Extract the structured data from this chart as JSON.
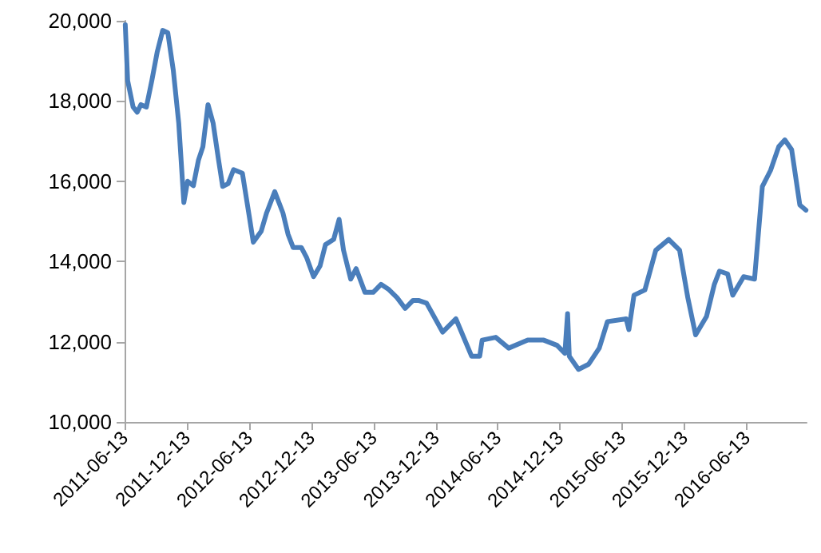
{
  "chart_data": {
    "type": "line",
    "x": [
      "2011-06-15",
      "2011-06-22",
      "2011-07-08",
      "2011-07-20",
      "2011-07-31",
      "2011-08-16",
      "2011-09-01",
      "2011-09-17",
      "2011-10-03",
      "2011-10-18",
      "2011-11-03",
      "2011-11-19",
      "2011-12-04",
      "2011-12-15",
      "2012-01-01",
      "2012-01-16",
      "2012-01-29",
      "2012-02-13",
      "2012-02-28",
      "2012-03-15",
      "2012-03-27",
      "2012-04-12",
      "2012-04-28",
      "2012-05-24",
      "2012-06-14",
      "2012-06-25",
      "2012-07-18",
      "2012-08-03",
      "2012-08-27",
      "2012-09-20",
      "2012-10-05",
      "2012-10-20",
      "2012-11-13",
      "2012-11-29",
      "2012-12-19",
      "2013-01-07",
      "2013-01-23",
      "2013-02-16",
      "2013-03-04",
      "2013-03-17",
      "2013-04-07",
      "2013-04-23",
      "2013-05-19",
      "2013-06-12",
      "2013-07-05",
      "2013-07-28",
      "2013-08-21",
      "2013-09-14",
      "2013-10-07",
      "2013-10-23",
      "2013-11-16",
      "2014-01-02",
      "2014-02-10",
      "2014-03-28",
      "2014-04-21",
      "2014-04-28",
      "2014-06-07",
      "2014-07-15",
      "2014-09-09",
      "2014-10-26",
      "2014-12-04",
      "2014-12-27",
      "2015-01-04",
      "2015-01-09",
      "2015-02-05",
      "2015-03-07",
      "2015-04-07",
      "2015-05-01",
      "2015-06-25",
      "2015-07-03",
      "2015-07-18",
      "2015-08-19",
      "2015-09-20",
      "2015-10-28",
      "2015-11-29",
      "2015-12-23",
      "2016-01-15",
      "2016-02-16",
      "2016-03-10",
      "2016-03-25",
      "2016-04-18",
      "2016-05-03",
      "2016-06-04",
      "2016-07-06",
      "2016-07-29",
      "2016-08-22",
      "2016-09-15",
      "2016-10-03",
      "2016-10-23",
      "2016-11-16",
      "2016-12-04"
    ],
    "series": [
      {
        "color": "#4a7ebb",
        "values": [
          19900,
          18510,
          17850,
          17720,
          17910,
          17850,
          18510,
          19230,
          19760,
          19700,
          18770,
          17450,
          15470,
          16000,
          15890,
          16530,
          16860,
          17910,
          17450,
          16530,
          15870,
          15940,
          16290,
          16200,
          15080,
          14480,
          14750,
          15210,
          15740,
          15210,
          14680,
          14350,
          14350,
          14090,
          13620,
          13890,
          14420,
          14550,
          15050,
          14280,
          13560,
          13820,
          13230,
          13230,
          13430,
          13300,
          13100,
          12830,
          13030,
          13030,
          12960,
          12240,
          12570,
          11640,
          11640,
          12040,
          12110,
          11840,
          12040,
          12040,
          11910,
          11710,
          12700,
          11640,
          11310,
          11440,
          11840,
          12500,
          12570,
          12300,
          13160,
          13290,
          14280,
          14550,
          14280,
          13100,
          12170,
          12630,
          13430,
          13760,
          13690,
          13160,
          13620,
          13560,
          15870,
          16270,
          16860,
          17030,
          16790,
          15410,
          15280
        ]
      }
    ],
    "xlim": [
      "2011-06-13",
      "2016-12-06"
    ],
    "xticks": [
      {
        "value": "2011-06-13",
        "label": "2011-06-13"
      },
      {
        "value": "2011-12-13",
        "label": "2011-12-13"
      },
      {
        "value": "2012-06-13",
        "label": "2012-06-13"
      },
      {
        "value": "2012-12-13",
        "label": "2012-12-13"
      },
      {
        "value": "2013-06-13",
        "label": "2013-06-13"
      },
      {
        "value": "2013-12-13",
        "label": "2013-12-13"
      },
      {
        "value": "2014-06-13",
        "label": "2014-06-13"
      },
      {
        "value": "2014-12-13",
        "label": "2014-12-13"
      },
      {
        "value": "2015-06-13",
        "label": "2015-06-13"
      },
      {
        "value": "2015-12-13",
        "label": "2015-12-13"
      },
      {
        "value": "2016-06-13",
        "label": "2016-06-13"
      }
    ],
    "ylim": [
      10000,
      20000
    ],
    "yticks": [
      {
        "value": 10000,
        "label": "10,000"
      },
      {
        "value": 12000,
        "label": "12,000"
      },
      {
        "value": 14000,
        "label": "14,000"
      },
      {
        "value": 16000,
        "label": "16,000"
      },
      {
        "value": 18000,
        "label": "18,000"
      },
      {
        "value": 20000,
        "label": "20,000"
      }
    ],
    "grid": false,
    "marker": "none",
    "line_style": "solid"
  }
}
